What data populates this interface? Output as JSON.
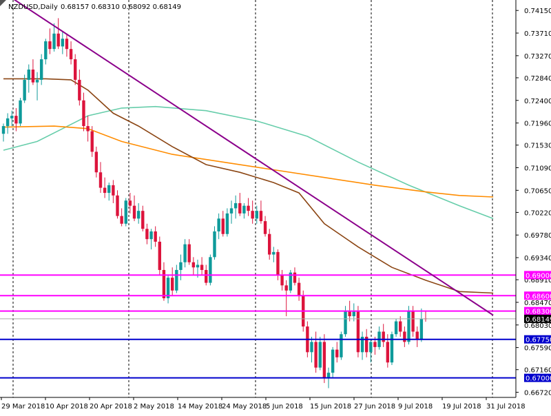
{
  "header": {
    "symbol": "NZDUSD,Daily",
    "ohlc": "0.68157 0.68310 0.68092 0.68149"
  },
  "colors": {
    "bull": "#0e9a9a",
    "bear": "#dc143c",
    "ma_fast": "#8b4513",
    "ma_mid": "#ff8c00",
    "ma_slow": "#66cdaa",
    "trendline": "#8b008b",
    "resistance": "#ff00ff",
    "support": "#0000cd",
    "current": "#a9a9a9"
  },
  "chart_data": {
    "type": "candlestick",
    "price_axis_ticks": [
      "0.74150",
      "0.73710",
      "0.73270",
      "0.72840",
      "0.72400",
      "0.71960",
      "0.71530",
      "0.71090",
      "0.70650",
      "0.70220",
      "0.69780",
      "0.69340",
      "0.68910",
      "0.68470",
      "0.68030",
      "0.67590",
      "0.67160",
      "0.66720"
    ],
    "date_axis_labels": [
      "29 Mar 2018",
      "10 Apr 2018",
      "20 Apr 2018",
      "2 May 2018",
      "14 May 2018",
      "24 May 2018",
      "5 Jun 2018",
      "15 Jun 2018",
      "27 Jun 2018",
      "9 Jul 2018",
      "19 Jul 2018",
      "31 Jul 2018"
    ],
    "ylim": [
      0.6662,
      0.743
    ],
    "levels": [
      {
        "label": "0.69000",
        "value": 0.69,
        "kind": "resistance"
      },
      {
        "label": "0.68600",
        "value": 0.686,
        "kind": "resistance"
      },
      {
        "label": "0.68300",
        "value": 0.683,
        "kind": "resistance"
      },
      {
        "label": "0.67750",
        "value": 0.6775,
        "kind": "support"
      },
      {
        "label": "0.67000",
        "value": 0.67,
        "kind": "support"
      }
    ],
    "current_price": {
      "label": "0.68149",
      "value": 0.68149
    },
    "trendline": {
      "from": [
        0,
        0.745
      ],
      "to": [
        116,
        0.6822
      ]
    },
    "candles": [
      [
        0.7175,
        0.7195,
        0.716,
        0.719
      ],
      [
        0.719,
        0.7215,
        0.7175,
        0.7205
      ],
      [
        0.7205,
        0.722,
        0.719,
        0.721
      ],
      [
        0.721,
        0.7225,
        0.718,
        0.7195
      ],
      [
        0.7195,
        0.7245,
        0.719,
        0.724
      ],
      [
        0.724,
        0.729,
        0.7235,
        0.728
      ],
      [
        0.728,
        0.731,
        0.7255,
        0.73
      ],
      [
        0.73,
        0.732,
        0.727,
        0.7275
      ],
      [
        0.7275,
        0.7295,
        0.724,
        0.728
      ],
      [
        0.728,
        0.733,
        0.727,
        0.732
      ],
      [
        0.732,
        0.736,
        0.731,
        0.7355
      ],
      [
        0.7355,
        0.738,
        0.733,
        0.734
      ],
      [
        0.734,
        0.739,
        0.7335,
        0.737
      ],
      [
        0.737,
        0.74,
        0.734,
        0.7345
      ],
      [
        0.7345,
        0.7375,
        0.733,
        0.736
      ],
      [
        0.736,
        0.737,
        0.7325,
        0.734
      ],
      [
        0.734,
        0.7355,
        0.731,
        0.732
      ],
      [
        0.732,
        0.733,
        0.727,
        0.728
      ],
      [
        0.728,
        0.73,
        0.723,
        0.724
      ],
      [
        0.724,
        0.7255,
        0.718,
        0.719
      ],
      [
        0.719,
        0.721,
        0.716,
        0.718
      ],
      [
        0.718,
        0.719,
        0.713,
        0.714
      ],
      [
        0.714,
        0.715,
        0.709,
        0.71
      ],
      [
        0.71,
        0.712,
        0.706,
        0.707
      ],
      [
        0.707,
        0.709,
        0.705,
        0.706
      ],
      [
        0.706,
        0.708,
        0.7045,
        0.7075
      ],
      [
        0.7075,
        0.7085,
        0.704,
        0.7055
      ],
      [
        0.7055,
        0.7065,
        0.701,
        0.7015
      ],
      [
        0.7015,
        0.703,
        0.6995,
        0.7
      ],
      [
        0.7,
        0.705,
        0.6995,
        0.7045
      ],
      [
        0.7045,
        0.706,
        0.702,
        0.7035
      ],
      [
        0.7035,
        0.7055,
        0.7005,
        0.701
      ],
      [
        0.701,
        0.704,
        0.7,
        0.7025
      ],
      [
        0.7025,
        0.7035,
        0.6985,
        0.699
      ],
      [
        0.699,
        0.7,
        0.696,
        0.697
      ],
      [
        0.697,
        0.699,
        0.695,
        0.6985
      ],
      [
        0.6985,
        0.6995,
        0.6955,
        0.6965
      ],
      [
        0.6965,
        0.6975,
        0.69,
        0.691
      ],
      [
        0.691,
        0.6925,
        0.685,
        0.6855
      ],
      [
        0.6855,
        0.69,
        0.6845,
        0.6895
      ],
      [
        0.6895,
        0.6915,
        0.686,
        0.687
      ],
      [
        0.687,
        0.692,
        0.6865,
        0.691
      ],
      [
        0.691,
        0.694,
        0.689,
        0.6925
      ],
      [
        0.6925,
        0.697,
        0.6915,
        0.696
      ],
      [
        0.696,
        0.697,
        0.692,
        0.6925
      ],
      [
        0.6925,
        0.6935,
        0.69,
        0.6915
      ],
      [
        0.6915,
        0.693,
        0.6895,
        0.692
      ],
      [
        0.692,
        0.6935,
        0.69,
        0.691
      ],
      [
        0.691,
        0.692,
        0.688,
        0.6885
      ],
      [
        0.6885,
        0.694,
        0.688,
        0.6935
      ],
      [
        0.6935,
        0.6995,
        0.693,
        0.6985
      ],
      [
        0.6985,
        0.702,
        0.697,
        0.701
      ],
      [
        0.701,
        0.7025,
        0.6975,
        0.698
      ],
      [
        0.698,
        0.703,
        0.6975,
        0.702
      ],
      [
        0.702,
        0.7045,
        0.7,
        0.703
      ],
      [
        0.703,
        0.7055,
        0.701,
        0.704
      ],
      [
        0.704,
        0.706,
        0.7015,
        0.702
      ],
      [
        0.702,
        0.704,
        0.701,
        0.7035
      ],
      [
        0.7035,
        0.705,
        0.7015,
        0.7025
      ],
      [
        0.7025,
        0.7045,
        0.7,
        0.701
      ],
      [
        0.701,
        0.7035,
        0.7,
        0.7025
      ],
      [
        0.7025,
        0.7045,
        0.7,
        0.7005
      ],
      [
        0.7005,
        0.7015,
        0.6975,
        0.698
      ],
      [
        0.698,
        0.699,
        0.693,
        0.694
      ],
      [
        0.694,
        0.6955,
        0.6925,
        0.6945
      ],
      [
        0.6945,
        0.695,
        0.689,
        0.69
      ],
      [
        0.69,
        0.691,
        0.687,
        0.688
      ],
      [
        0.688,
        0.689,
        0.682,
        0.687
      ],
      [
        0.687,
        0.691,
        0.6865,
        0.6905
      ],
      [
        0.6905,
        0.6915,
        0.688,
        0.6885
      ],
      [
        0.6885,
        0.6895,
        0.685,
        0.686
      ],
      [
        0.686,
        0.687,
        0.679,
        0.68
      ],
      [
        0.68,
        0.681,
        0.674,
        0.675
      ],
      [
        0.675,
        0.678,
        0.673,
        0.677
      ],
      [
        0.677,
        0.679,
        0.671,
        0.672
      ],
      [
        0.672,
        0.678,
        0.6715,
        0.677
      ],
      [
        0.677,
        0.6785,
        0.669,
        0.67
      ],
      [
        0.67,
        0.672,
        0.668,
        0.671
      ],
      [
        0.671,
        0.676,
        0.67,
        0.6755
      ],
      [
        0.6755,
        0.677,
        0.673,
        0.674
      ],
      [
        0.674,
        0.679,
        0.6735,
        0.6785
      ],
      [
        0.6785,
        0.684,
        0.678,
        0.683
      ],
      [
        0.683,
        0.685,
        0.681,
        0.682
      ],
      [
        0.682,
        0.6845,
        0.681,
        0.683
      ],
      [
        0.683,
        0.684,
        0.674,
        0.675
      ],
      [
        0.675,
        0.679,
        0.6735,
        0.678
      ],
      [
        0.678,
        0.6795,
        0.674,
        0.675
      ],
      [
        0.675,
        0.6775,
        0.673,
        0.677
      ],
      [
        0.677,
        0.678,
        0.6745,
        0.676
      ],
      [
        0.676,
        0.68,
        0.6755,
        0.679
      ],
      [
        0.679,
        0.6805,
        0.676,
        0.677
      ],
      [
        0.677,
        0.6785,
        0.672,
        0.673
      ],
      [
        0.673,
        0.679,
        0.6725,
        0.6785
      ],
      [
        0.6785,
        0.6815,
        0.678,
        0.681
      ],
      [
        0.681,
        0.682,
        0.678,
        0.679
      ],
      [
        0.679,
        0.68,
        0.676,
        0.677
      ],
      [
        0.677,
        0.684,
        0.6765,
        0.683
      ],
      [
        0.683,
        0.684,
        0.678,
        0.679
      ],
      [
        0.679,
        0.68,
        0.676,
        0.6775
      ],
      [
        0.6775,
        0.6835,
        0.677,
        0.6815
      ],
      [
        0.68157,
        0.6831,
        0.68092,
        0.68149
      ]
    ],
    "ma_fast": [
      [
        0,
        0.7282
      ],
      [
        10,
        0.7282
      ],
      [
        16,
        0.728
      ],
      [
        20,
        0.726
      ],
      [
        26,
        0.7215
      ],
      [
        32,
        0.719
      ],
      [
        40,
        0.715
      ],
      [
        48,
        0.7115
      ],
      [
        56,
        0.71
      ],
      [
        64,
        0.708
      ],
      [
        70,
        0.706
      ],
      [
        76,
        0.7
      ],
      [
        84,
        0.6955
      ],
      [
        92,
        0.6915
      ],
      [
        100,
        0.689
      ],
      [
        108,
        0.6868
      ],
      [
        116,
        0.6865
      ]
    ],
    "ma_mid": [
      [
        0,
        0.7188
      ],
      [
        12,
        0.719
      ],
      [
        20,
        0.7185
      ],
      [
        28,
        0.716
      ],
      [
        40,
        0.7135
      ],
      [
        52,
        0.712
      ],
      [
        64,
        0.7105
      ],
      [
        76,
        0.709
      ],
      [
        88,
        0.7075
      ],
      [
        100,
        0.7062
      ],
      [
        108,
        0.7055
      ],
      [
        116,
        0.7052
      ]
    ],
    "ma_slow": [
      [
        0,
        0.7143
      ],
      [
        8,
        0.716
      ],
      [
        14,
        0.7185
      ],
      [
        20,
        0.721
      ],
      [
        28,
        0.7225
      ],
      [
        36,
        0.7228
      ],
      [
        48,
        0.722
      ],
      [
        60,
        0.72
      ],
      [
        72,
        0.717
      ],
      [
        84,
        0.712
      ],
      [
        96,
        0.7075
      ],
      [
        108,
        0.7035
      ],
      [
        116,
        0.701
      ]
    ]
  }
}
